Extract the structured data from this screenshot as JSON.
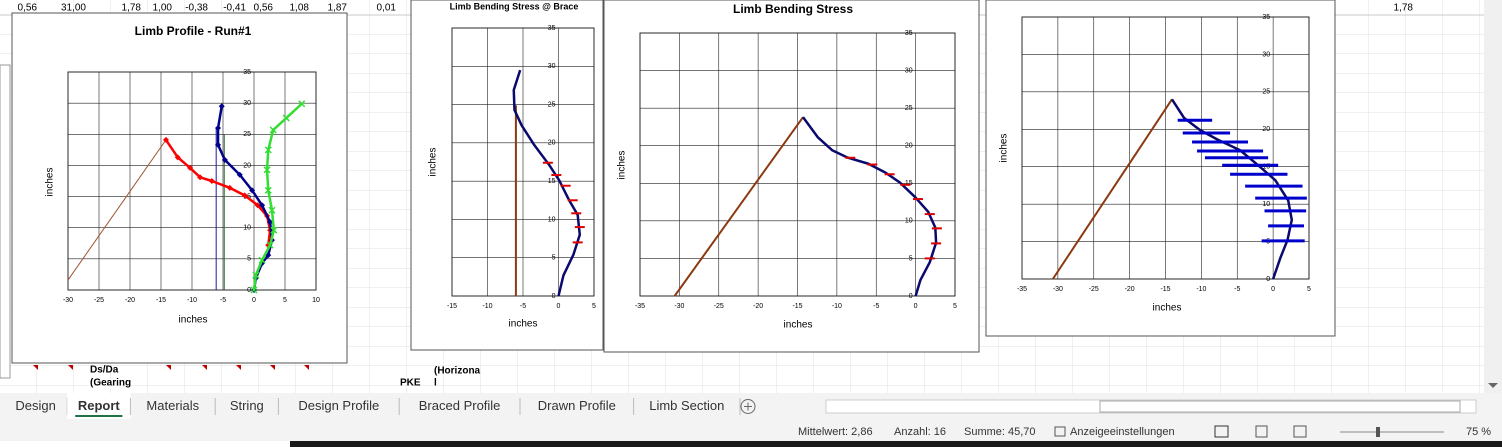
{
  "sheet": {
    "top_row": [
      "0,56",
      "31,00",
      "1,78",
      "1,00",
      "-0,38",
      "-0,41",
      "0,56",
      "1,08",
      "1,87",
      "0,01",
      "1,78"
    ],
    "bottom_cells": [
      "Ds/Da",
      "(Gearing",
      "PKE",
      "(Horizona",
      "l"
    ]
  },
  "chart_data": [
    {
      "type": "line",
      "title": "Limb Profile - Run#1",
      "x_label": "inches",
      "y_label": "inches",
      "xlim": [
        -30,
        10
      ],
      "xticks": [
        -30,
        -25,
        -20,
        -15,
        -10,
        -5,
        0,
        5,
        10
      ],
      "ylim": [
        0,
        35
      ],
      "yticks": [
        0,
        5,
        10,
        15,
        20,
        25,
        30,
        35
      ],
      "grid": true,
      "series": [
        {
          "color": "#a0522d",
          "width": 1,
          "x": [
            -30,
            -14.2
          ],
          "values": [
            1.6,
            24.1
          ]
        },
        {
          "color": "#1a1aa0",
          "width": 1,
          "x": [
            -6.1,
            -6.1
          ],
          "values": [
            0,
            26
          ]
        },
        {
          "color": "#2e6b2e",
          "width": 1,
          "x": [
            -4.8,
            -4.8
          ],
          "values": [
            0,
            25
          ]
        },
        {
          "color": "#ff0000",
          "width": 2.5,
          "marker": "diamond",
          "x": [
            -14.2,
            -12.3,
            -10.3,
            -8.7,
            -6.8,
            -3.9,
            -1.5,
            0.6,
            2.1,
            2.6,
            2.3
          ],
          "values": [
            24.1,
            21.3,
            19.6,
            18.1,
            17.5,
            16.4,
            15.2,
            13.6,
            11.9,
            9.6,
            7.2
          ]
        },
        {
          "color": "#00008b",
          "width": 2.5,
          "marker": "diamond",
          "x": [
            -5.2,
            -5.8,
            -5.8,
            -4.7,
            -2.3,
            -0.3,
            1.3,
            2.6,
            2.9,
            2.3,
            1.3,
            0.3,
            0
          ],
          "values": [
            29.5,
            26,
            23.3,
            20.9,
            18.5,
            16,
            13.6,
            10.9,
            8,
            5.6,
            4.3,
            1.9,
            0
          ]
        },
        {
          "color": "#33dd33",
          "width": 2.5,
          "marker": "x",
          "x": [
            7.7,
            5.2,
            3.1,
            2.3,
            2.1,
            2.3,
            2.9,
            3.2,
            2.6,
            1.3,
            0.3,
            0
          ],
          "values": [
            29.9,
            27.6,
            25.7,
            22.5,
            19.3,
            16,
            12.8,
            9.6,
            7.2,
            4.8,
            2.4,
            0
          ]
        }
      ]
    },
    {
      "type": "line",
      "title": "Limb Bending Stress @ Brace",
      "x_label": "inches",
      "y_label": "inches",
      "xlim": [
        -15,
        5
      ],
      "xticks": [
        -15,
        -10,
        -5,
        0,
        5
      ],
      "ylim": [
        0,
        35
      ],
      "yticks": [
        0,
        5,
        10,
        15,
        20,
        25,
        30,
        35
      ],
      "grid": true,
      "series": [
        {
          "color": "#8b3a0f",
          "width": 2,
          "x": [
            -6,
            -6
          ],
          "values": [
            0,
            24.9
          ]
        },
        {
          "color": "#0a0a6e",
          "width": 2.5,
          "x": [
            -5.4,
            -6.3,
            -6.2,
            -5.2,
            -3.4,
            -1.3,
            0.1,
            1.5,
            2.7,
            3,
            2.1,
            0.7,
            0
          ],
          "values": [
            29.5,
            26.9,
            24.3,
            22.3,
            19.7,
            17.1,
            15.1,
            12.5,
            10.6,
            8,
            5.4,
            2.7,
            0
          ]
        },
        {
          "color": "#dd0000",
          "width": 2,
          "marker": "dash",
          "line": false,
          "x": [
            -1.5,
            -0.3,
            1,
            2,
            2.5,
            3,
            2.7
          ],
          "values": [
            17.4,
            15.8,
            14.4,
            12.5,
            10.8,
            9,
            7
          ]
        }
      ]
    },
    {
      "type": "line",
      "title": "Limb Bending Stress",
      "x_label": "inches",
      "y_label": "inches",
      "xlim": [
        -35,
        5
      ],
      "xticks": [
        -35,
        -30,
        -25,
        -20,
        -15,
        -10,
        -5,
        0,
        5
      ],
      "ylim": [
        0,
        35
      ],
      "yticks": [
        0,
        5,
        10,
        15,
        20,
        25,
        30,
        35
      ],
      "grid": true,
      "series": [
        {
          "color": "#8b3a0f",
          "width": 2,
          "x": [
            -30.6,
            -14.3
          ],
          "values": [
            0,
            23.8
          ]
        },
        {
          "color": "#0a0a6e",
          "width": 2.5,
          "x": [
            -14.3,
            -12.4,
            -10.6,
            -8.6,
            -6,
            -3.8,
            -2,
            -0.1,
            1.6,
            2.5,
            2.6,
            1.8,
            0.6,
            0
          ],
          "values": [
            23.8,
            21.1,
            19.4,
            18.4,
            17.6,
            16.4,
            15.1,
            13.2,
            11.2,
            9.1,
            7.1,
            4.5,
            2.1,
            0
          ]
        },
        {
          "color": "#dd0000",
          "width": 2,
          "marker": "dash",
          "line": false,
          "x": [
            -8.3,
            -5.5,
            -3.3,
            -1.3,
            0.3,
            1.8,
            2.7,
            2.6,
            1.8
          ],
          "values": [
            18.4,
            17.5,
            16.2,
            14.8,
            12.9,
            10.9,
            9,
            7,
            5
          ]
        }
      ]
    },
    {
      "type": "line",
      "x_label": "inches",
      "y_label": "inches",
      "xlim": [
        -35,
        5
      ],
      "xticks": [
        -35,
        -30,
        -25,
        -20,
        -15,
        -10,
        -5,
        0,
        5
      ],
      "ylim": [
        0,
        35
      ],
      "yticks": [
        0,
        5,
        10,
        15,
        20,
        25,
        30,
        35
      ],
      "grid": true,
      "series": [
        {
          "color": "#8b3a0f",
          "width": 2,
          "x": [
            -30.7,
            -14.1
          ],
          "values": [
            0,
            24
          ]
        },
        {
          "color": "#0a0a6e",
          "width": 2.5,
          "x": [
            -14.1,
            -12.4,
            -10.2,
            -7.7,
            -4.6,
            -2.1,
            0.3,
            2.1,
            2.6,
            2,
            1,
            0
          ],
          "values": [
            24,
            21.5,
            19.9,
            18.6,
            17.2,
            15.2,
            13.2,
            10.5,
            7.9,
            5.2,
            2.8,
            0
          ]
        },
        {
          "color": "#0000cc",
          "width": 3,
          "line": false,
          "x": [
            -10.9,
            -9.3,
            -7.4,
            -6,
            -5.1,
            -3.2,
            -2,
            0.1,
            1.1,
            1.7,
            1.8,
            1.4
          ],
          "xerr": [
            2.4,
            3.3,
            3.9,
            4.6,
            4.4,
            3.9,
            4,
            4,
            3.6,
            2.9,
            2.5,
            3
          ],
          "values": [
            21.2,
            19.5,
            18.3,
            17.1,
            16.2,
            15.2,
            14,
            12.4,
            10.8,
            9.1,
            7.1,
            5.1
          ]
        }
      ]
    }
  ],
  "tabs": [
    "Design",
    "Report",
    "Materials",
    "String",
    "Design Profile",
    "Braced Profile",
    "Drawn Profile",
    "Limb Section"
  ],
  "active_tab": "Report",
  "status_bar": {
    "average": "Mittelwert: 2,86",
    "count": "Anzahl: 16",
    "sum": "Summe: 45,70",
    "display_settings": "Anzeigeeinstellungen",
    "zoom": "75 %"
  }
}
